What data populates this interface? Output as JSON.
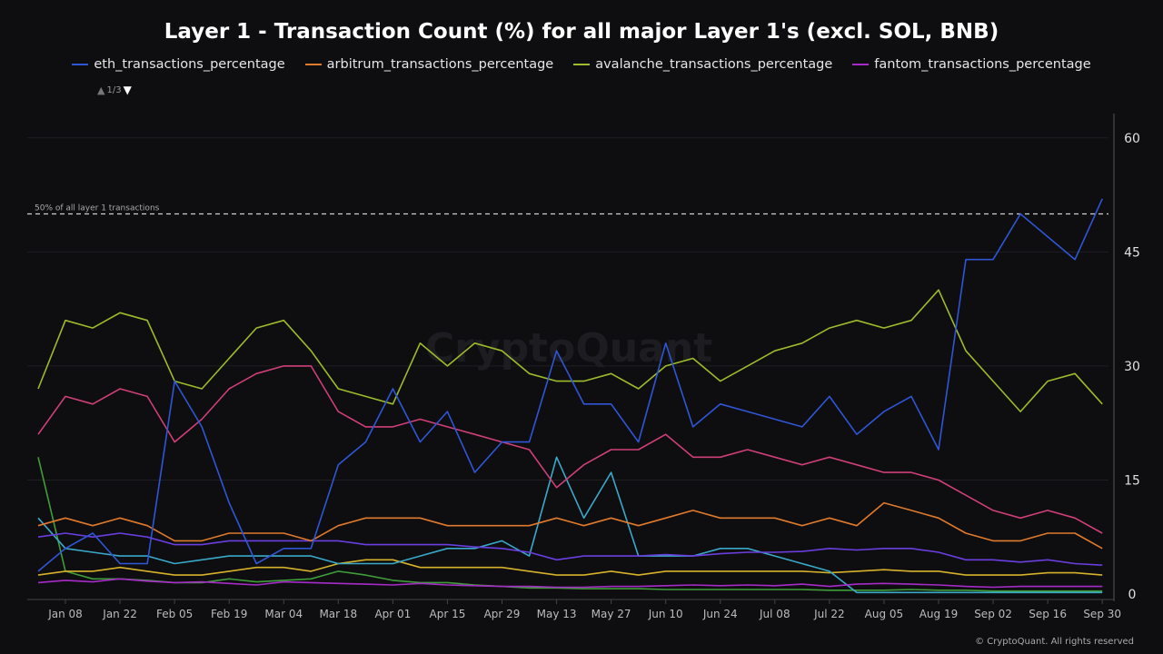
{
  "chart_data": {
    "type": "line",
    "title": "Layer 1 - Transaction Count (%) for all major Layer 1's (excl. SOL, BNB)",
    "legend_page": "1/3",
    "legend_position": "top",
    "x": [
      "2024-01-01",
      "2024-01-08",
      "2024-01-15",
      "2024-01-22",
      "2024-01-29",
      "2024-02-05",
      "2024-02-12",
      "2024-02-19",
      "2024-02-26",
      "2024-03-04",
      "2024-03-11",
      "2024-03-18",
      "2024-03-25",
      "2024-04-01",
      "2024-04-08",
      "2024-04-15",
      "2024-04-22",
      "2024-04-29",
      "2024-05-06",
      "2024-05-13",
      "2024-05-20",
      "2024-05-27",
      "2024-06-03",
      "2024-06-10",
      "2024-06-17",
      "2024-06-24",
      "2024-07-01",
      "2024-07-08",
      "2024-07-15",
      "2024-07-22",
      "2024-07-29",
      "2024-08-05",
      "2024-08-12",
      "2024-08-19",
      "2024-08-26",
      "2024-09-02",
      "2024-09-09",
      "2024-09-16",
      "2024-09-23",
      "2024-09-30"
    ],
    "x_tick_labels": [
      "Jan 08",
      "Jan 22",
      "Feb 05",
      "Feb 19",
      "Mar 04",
      "Mar 18",
      "Apr 01",
      "Apr 15",
      "Apr 29",
      "May 13",
      "May 27",
      "Jun 10",
      "Jun 24",
      "Jul 08",
      "Jul 22",
      "Aug 05",
      "Aug 19",
      "Sep 02",
      "Sep 16",
      "Sep 30"
    ],
    "y_ticks": [
      0,
      15,
      30,
      45,
      60
    ],
    "ylim": [
      0,
      63
    ],
    "y_axis_side": "right",
    "grid": true,
    "reference_line": {
      "value": 50,
      "label": "50% of all layer 1 transactions",
      "style": "dashed"
    },
    "series": [
      {
        "name": "eth_transactions_percentage",
        "color": "#2f56d6",
        "values": [
          3,
          6,
          8,
          4,
          4,
          28,
          22,
          12,
          4,
          6,
          6,
          17,
          20,
          27,
          20,
          24,
          16,
          20,
          20,
          32,
          25,
          25,
          20,
          33,
          22,
          25,
          24,
          23,
          22,
          26,
          21,
          24,
          26,
          19,
          44,
          44,
          50,
          47,
          44,
          52
        ]
      },
      {
        "name": "arbitrum_transactions_percentage",
        "color": "#e07a2c",
        "values": [
          9,
          10,
          9,
          10,
          9,
          7,
          7,
          8,
          8,
          8,
          7,
          9,
          10,
          10,
          10,
          9,
          9,
          9,
          9,
          10,
          9,
          10,
          9,
          10,
          11,
          10,
          10,
          10,
          9,
          10,
          9,
          12,
          11,
          10,
          8,
          7,
          7,
          8,
          8,
          6
        ]
      },
      {
        "name": "avalanche_transactions_percentage",
        "color": "#9dbb2a",
        "values": [
          27,
          36,
          35,
          37,
          36,
          28,
          27,
          31,
          35,
          36,
          32,
          27,
          26,
          25,
          33,
          30,
          33,
          32,
          29,
          28,
          28,
          29,
          27,
          30,
          31,
          28,
          30,
          32,
          33,
          35,
          36,
          35,
          36,
          40,
          32,
          28,
          24,
          28,
          29,
          25
        ]
      },
      {
        "name": "fantom_transactions_percentage",
        "color": "#a72bc9",
        "values": [
          1.5,
          1.8,
          1.6,
          2,
          1.7,
          1.5,
          1.6,
          1.4,
          1.2,
          1.6,
          1.5,
          1.4,
          1.3,
          1.2,
          1.4,
          1.2,
          1.1,
          1,
          1,
          0.9,
          0.9,
          1,
          1,
          1.1,
          1.2,
          1.1,
          1.2,
          1.1,
          1.3,
          1,
          1.3,
          1.4,
          1.3,
          1.2,
          1,
          0.9,
          1,
          1,
          1,
          1
        ]
      },
      {
        "color": "#cf3f79",
        "values": [
          21,
          26,
          25,
          27,
          26,
          20,
          23,
          27,
          29,
          30,
          30,
          24,
          22,
          22,
          23,
          22,
          21,
          20,
          19,
          14,
          17,
          19,
          19,
          21,
          18,
          18,
          19,
          18,
          17,
          18,
          17,
          16,
          16,
          15,
          13,
          11,
          10,
          11,
          10,
          8
        ]
      },
      {
        "color": "#6a3ee0",
        "values": [
          7.5,
          8,
          7.5,
          8,
          7.5,
          6.5,
          6.5,
          7,
          7,
          7,
          7,
          7,
          6.5,
          6.5,
          6.5,
          6.5,
          6.2,
          6,
          5.5,
          4.5,
          5,
          5,
          5,
          5.2,
          5,
          5.3,
          5.5,
          5.5,
          5.6,
          6,
          5.8,
          6,
          6,
          5.5,
          4.5,
          4.5,
          4.2,
          4.5,
          4,
          3.8
        ]
      },
      {
        "color": "#3aa9c9",
        "values": [
          10,
          6,
          5.5,
          5,
          5,
          4,
          4.5,
          5,
          5,
          5,
          5,
          4,
          4,
          4,
          5,
          6,
          6,
          7,
          5,
          18,
          10,
          16,
          5,
          5,
          5,
          6,
          6,
          5,
          4,
          3,
          0.2,
          0.2,
          0.2,
          0.2,
          0.2,
          0.2,
          0.2,
          0.2,
          0.2,
          0.2
        ]
      },
      {
        "color": "#d6b22a",
        "values": [
          2.5,
          3,
          3,
          3.5,
          3,
          2.5,
          2.5,
          3,
          3.5,
          3.5,
          3,
          4,
          4.5,
          4.5,
          3.5,
          3.5,
          3.5,
          3.5,
          3,
          2.5,
          2.5,
          3,
          2.5,
          3,
          3,
          3,
          3,
          3,
          3,
          2.8,
          3,
          3.2,
          3,
          3,
          2.5,
          2.5,
          2.5,
          2.8,
          2.8,
          2.5
        ]
      },
      {
        "color": "#3f9e3a",
        "values": [
          18,
          3,
          2,
          2,
          1.8,
          1.5,
          1.5,
          2,
          1.6,
          1.8,
          2,
          3,
          2.5,
          1.8,
          1.5,
          1.5,
          1.2,
          1,
          0.8,
          0.8,
          0.7,
          0.7,
          0.7,
          0.6,
          0.6,
          0.6,
          0.6,
          0.6,
          0.6,
          0.5,
          0.5,
          0.5,
          0.6,
          0.5,
          0.5,
          0.4,
          0.4,
          0.4,
          0.4,
          0.4
        ]
      }
    ]
  },
  "watermark": "CryptoQuant",
  "footer": "© CryptoQuant. All rights reserved"
}
